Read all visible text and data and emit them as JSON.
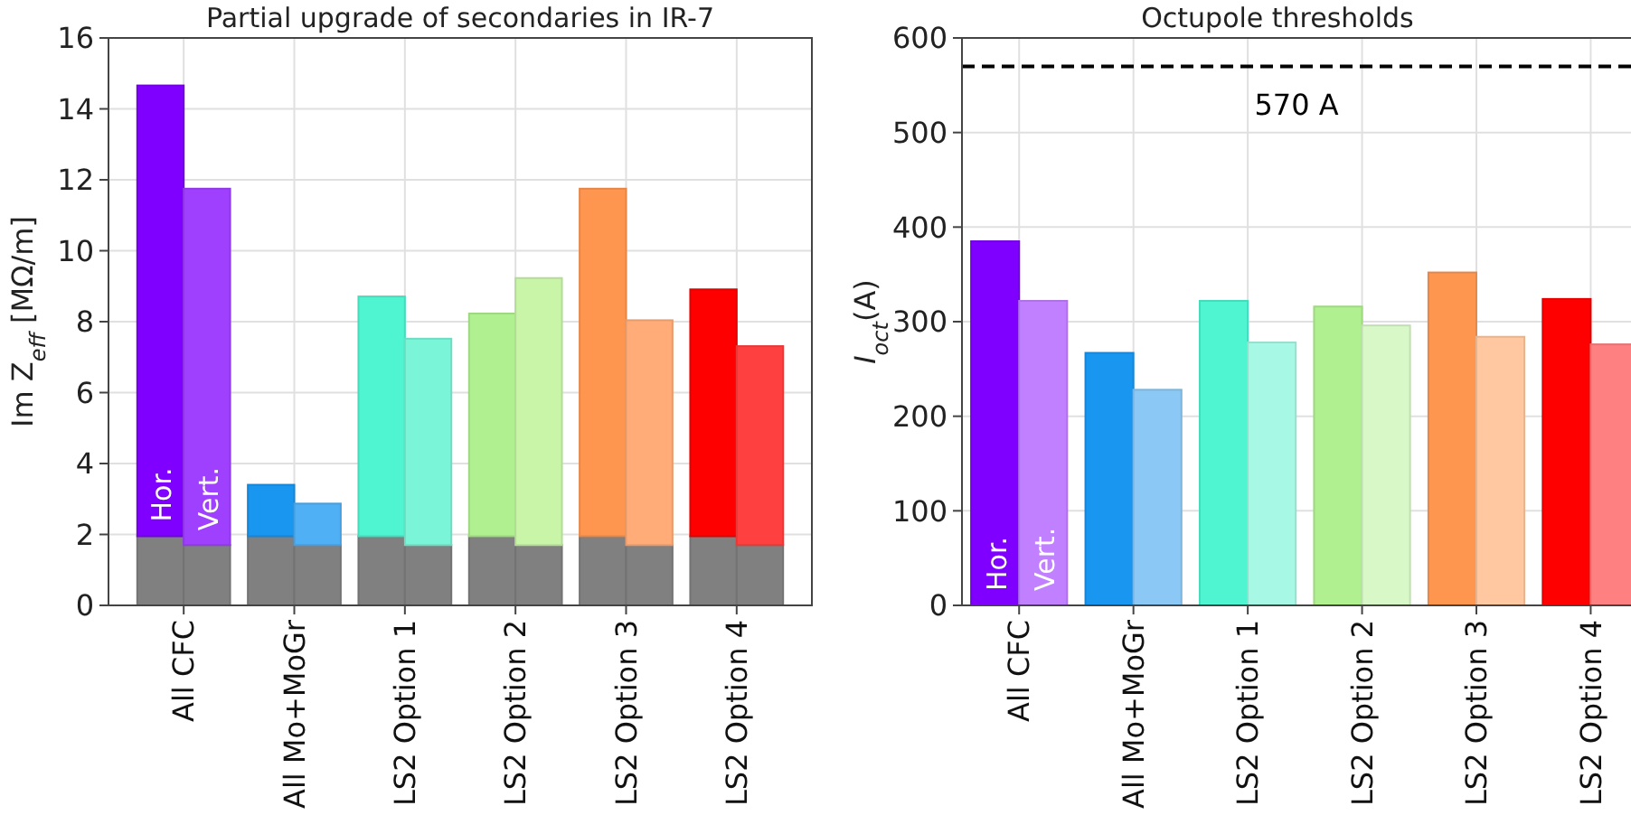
{
  "chart_data": [
    {
      "type": "bar",
      "title": "Partial upgrade of secondaries in IR-7",
      "ylabel": "Im Z$_{eff}$  [MΩ/m]",
      "categories": [
        "All CFC",
        "All Mo+MoGr",
        "LS2 Option 1",
        "LS2 Option 2",
        "LS2 Option 3",
        "LS2 Option 4"
      ],
      "ylim": [
        0,
        16
      ],
      "yticks": [
        0,
        2,
        4,
        6,
        8,
        10,
        12,
        14,
        16
      ],
      "grid": true,
      "series": [
        {
          "color": "#808080",
          "base": [
            0,
            0,
            0,
            0,
            0,
            0
          ],
          "values": [
            1.95,
            1.95,
            1.95,
            1.95,
            1.95,
            1.95
          ]
        },
        {
          "name": "Hor.",
          "colors": [
            "#8000ff",
            "#1996f0",
            "#4ef5d0",
            "#b0f090",
            "#ff9650",
            "#ff0000"
          ],
          "base": [
            1.95,
            1.95,
            1.95,
            1.95,
            1.95,
            1.95
          ],
          "values": [
            12.71,
            1.45,
            6.76,
            6.28,
            9.8,
            6.96
          ]
        },
        {
          "color": "#808080",
          "base": [
            0,
            0,
            0,
            0,
            0,
            0
          ],
          "values": [
            1.7,
            1.7,
            1.7,
            1.7,
            1.7,
            1.7
          ]
        },
        {
          "name": "Vert.",
          "colors": [
            "#a040ff",
            "#50b0f5",
            "#7af5d8",
            "#c8f5a8",
            "#ffac78",
            "#ff4040"
          ],
          "base": [
            1.7,
            1.7,
            1.7,
            1.7,
            1.7,
            1.7
          ],
          "values": [
            10.05,
            1.17,
            5.82,
            7.53,
            6.34,
            5.61
          ]
        }
      ]
    },
    {
      "type": "bar",
      "title": "Octupole thresholds",
      "ylabel": "I$_{oct}$(A)",
      "categories": [
        "All CFC",
        "All Mo+MoGr",
        "LS2 Option 1",
        "LS2 Option 2",
        "LS2 Option 3",
        "LS2 Option 4"
      ],
      "ylim": [
        0,
        600
      ],
      "yticks": [
        0,
        100,
        200,
        300,
        400,
        500,
        600
      ],
      "grid": true,
      "ref_lines": [
        {
          "axis": "y",
          "value": 570,
          "label": "570 A",
          "color": "#000000",
          "line_style": "dashed"
        }
      ],
      "series": [
        {
          "name": "Hor.",
          "colors": [
            "#8000ff",
            "#1996f0",
            "#4ef5d0",
            "#b0f090",
            "#ff9650",
            "#ff0000"
          ],
          "values": [
            385,
            267,
            322,
            316,
            352,
            324
          ]
        },
        {
          "name": "Vert.",
          "colors": [
            "#c080ff",
            "#8cc8f5",
            "#a8f8e6",
            "#d8f8c8",
            "#ffc8a0",
            "#ff8080"
          ],
          "values": [
            322,
            228,
            278,
            296,
            284,
            276
          ]
        }
      ]
    }
  ]
}
